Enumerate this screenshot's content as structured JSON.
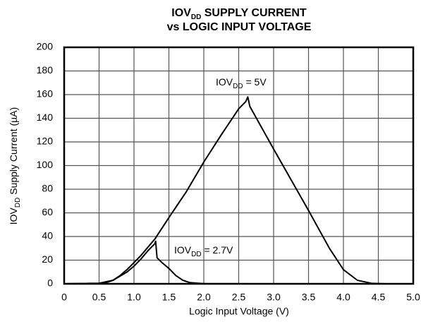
{
  "chart_data": {
    "type": "line",
    "title": {
      "line1": [
        "IOV",
        "DD",
        " SUPPLY CURRENT"
      ],
      "line2": "vs LOGIC INPUT VOLTAGE"
    },
    "xlabel": "Logic Input Voltage (V)",
    "ylabel": [
      "IOV",
      "DD",
      " Supply Current (µA)"
    ],
    "xlim": [
      0,
      5
    ],
    "ylim": [
      0,
      200
    ],
    "xticks": [
      0,
      0.5,
      {
        "value": 1,
        "label": "1.0"
      },
      1.5,
      {
        "value": 2,
        "label": "2.0"
      },
      2.5,
      {
        "value": 3,
        "label": "3.0"
      },
      3.5,
      {
        "value": 4,
        "label": "4.0"
      },
      4.5,
      {
        "value": 5,
        "label": "5.0"
      }
    ],
    "yticks": [
      0,
      20,
      40,
      60,
      80,
      100,
      120,
      140,
      160,
      180,
      200
    ],
    "grid": true,
    "series": [
      {
        "name": "IOVDD = 5V",
        "color": "#000000",
        "x": [
          0,
          0.5,
          0.6,
          0.7,
          0.8,
          0.9,
          1.0,
          1.1,
          1.2,
          1.3,
          1.5,
          1.75,
          2.0,
          2.25,
          2.5,
          2.6,
          2.63,
          2.66,
          3.0,
          3.5,
          3.8,
          4.0,
          4.2,
          4.4,
          4.6,
          5.0
        ],
        "values": [
          0,
          0.5,
          1,
          3,
          7,
          12,
          18,
          24,
          31,
          38,
          56,
          78,
          103,
          126,
          148,
          154,
          158,
          150,
          114,
          62,
          30,
          12,
          3,
          0.5,
          0,
          0
        ]
      },
      {
        "name": "IOVDD = 2.7V",
        "color": "#000000",
        "x": [
          0,
          0.5,
          0.7,
          0.9,
          1.0,
          1.1,
          1.2,
          1.3,
          1.31,
          1.33,
          1.4,
          1.5,
          1.6,
          1.7,
          1.8,
          2.0,
          2.7
        ],
        "values": [
          0,
          0.5,
          3,
          10,
          15,
          21,
          28,
          34,
          36,
          22,
          18,
          13,
          7,
          3,
          1,
          0.2,
          0
        ]
      }
    ],
    "annotations": [
      {
        "text": [
          "IOV",
          "DD",
          " = 5V"
        ]
      },
      {
        "text": [
          "IOV",
          "DD",
          " = 2.7V"
        ]
      }
    ]
  }
}
